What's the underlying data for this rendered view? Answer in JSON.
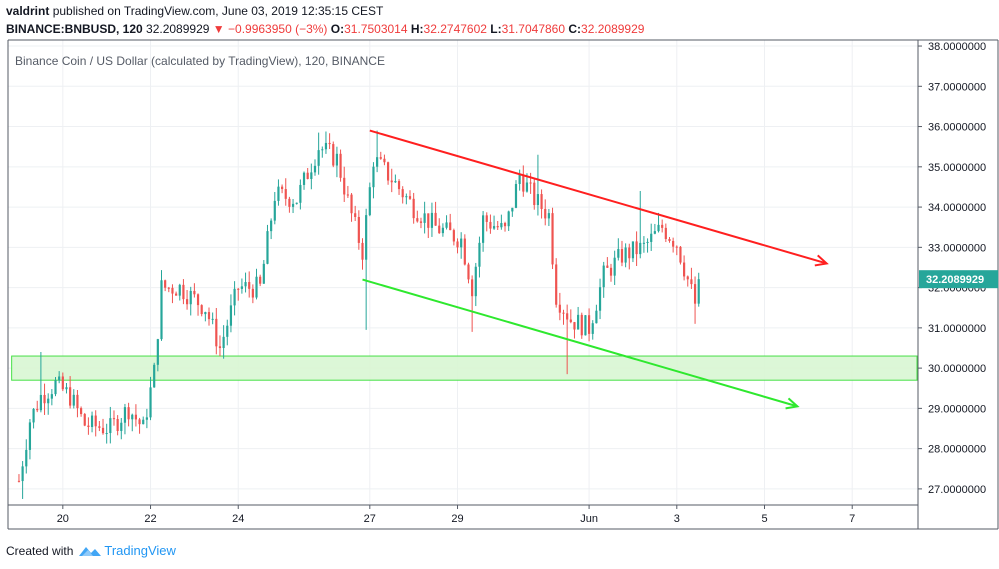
{
  "header": {
    "author": "valdrint",
    "published": "published on TradingView.com, June 03, 2019 12:35:15 CEST",
    "symbol": "BINANCE:BNBUSD, 120",
    "last": "32.2089929",
    "change": "−0.9963950 (−3%)",
    "o_label": "O:",
    "o_value": "31.7503014",
    "h_label": "H:",
    "h_value": "32.2747602",
    "l_label": "L:",
    "l_value": "31.7047860",
    "c_label": "C:",
    "c_value": "32.2089929"
  },
  "footer": {
    "created_with": "Created with",
    "brand": "TradingView"
  },
  "colors": {
    "up": "#26a69a",
    "down": "#ef5350",
    "resistance": "#ff1f1f",
    "support": "#2ee82e",
    "zone_fill": "#d9f7d3",
    "zone_border": "#33dd33",
    "grid": "#eef0f3",
    "axis": "#9598a1",
    "price_label": "#26a69a"
  },
  "chart_data": {
    "type": "candlestick",
    "title": "Binance Coin / US Dollar (calculated by TradingView), 120, BINANCE",
    "interval_hours": 2,
    "x_ticks": [
      "20",
      "22",
      "24",
      "27",
      "29",
      "Jun",
      "3",
      "5",
      "7"
    ],
    "x_tick_dates": [
      "2019-05-20",
      "2019-05-22",
      "2019-05-24",
      "2019-05-27",
      "2019-05-29",
      "2019-06-01",
      "2019-06-03",
      "2019-06-05",
      "2019-06-07"
    ],
    "x_range": [
      "2019-05-18 18:00",
      "2019-06-08 12:00"
    ],
    "y_ticks": [
      "27.0000000",
      "28.0000000",
      "29.0000000",
      "30.0000000",
      "31.0000000",
      "32.0000000",
      "33.0000000",
      "34.0000000",
      "35.0000000",
      "36.0000000",
      "37.0000000",
      "38.0000000"
    ],
    "ylim": [
      26.6,
      38.15
    ],
    "last_price_label": "32.2089929",
    "last_price": 32.2089929,
    "anchors": [
      {
        "t": "2019-05-19 00:00",
        "price": 27.2
      },
      {
        "t": "2019-05-19 06:00",
        "price": 28.7
      },
      {
        "t": "2019-05-19 12:00",
        "price": 29.3
      },
      {
        "t": "2019-05-19 20:00",
        "price": 29.6
      },
      {
        "t": "2019-05-20 04:00",
        "price": 29.3
      },
      {
        "t": "2019-05-20 12:00",
        "price": 28.6
      },
      {
        "t": "2019-05-21 02:00",
        "price": 28.5
      },
      {
        "t": "2019-05-21 12:00",
        "price": 29.0
      },
      {
        "t": "2019-05-21 20:00",
        "price": 28.5
      },
      {
        "t": "2019-05-22 02:00",
        "price": 29.9
      },
      {
        "t": "2019-05-22 06:00",
        "price": 32.0
      },
      {
        "t": "2019-05-22 16:00",
        "price": 32.0
      },
      {
        "t": "2019-05-23 06:00",
        "price": 31.5
      },
      {
        "t": "2019-05-23 14:00",
        "price": 30.5
      },
      {
        "t": "2019-05-24 00:00",
        "price": 32.0
      },
      {
        "t": "2019-05-24 12:00",
        "price": 32.0
      },
      {
        "t": "2019-05-24 20:00",
        "price": 34.3
      },
      {
        "t": "2019-05-25 08:00",
        "price": 34.2
      },
      {
        "t": "2019-05-25 20:00",
        "price": 35.5
      },
      {
        "t": "2019-05-26 06:00",
        "price": 35.2
      },
      {
        "t": "2019-05-26 14:00",
        "price": 33.8
      },
      {
        "t": "2019-05-26 20:00",
        "price": 32.9
      },
      {
        "t": "2019-05-27 02:00",
        "price": 35.2
      },
      {
        "t": "2019-05-27 12:00",
        "price": 34.7
      },
      {
        "t": "2019-05-28 00:00",
        "price": 34.0
      },
      {
        "t": "2019-05-28 12:00",
        "price": 33.5
      },
      {
        "t": "2019-05-29 02:00",
        "price": 33.2
      },
      {
        "t": "2019-05-29 08:00",
        "price": 32.0
      },
      {
        "t": "2019-05-29 14:00",
        "price": 33.7
      },
      {
        "t": "2019-05-30 02:00",
        "price": 33.4
      },
      {
        "t": "2019-05-30 10:00",
        "price": 34.8
      },
      {
        "t": "2019-05-30 18:00",
        "price": 34.2
      },
      {
        "t": "2019-05-31 02:00",
        "price": 33.8
      },
      {
        "t": "2019-05-31 06:00",
        "price": 31.8
      },
      {
        "t": "2019-05-31 14:00",
        "price": 31.2
      },
      {
        "t": "2019-06-01 00:00",
        "price": 31.0
      },
      {
        "t": "2019-06-01 08:00",
        "price": 32.3
      },
      {
        "t": "2019-06-01 18:00",
        "price": 32.8
      },
      {
        "t": "2019-06-02 06:00",
        "price": 33.0
      },
      {
        "t": "2019-06-02 16:00",
        "price": 33.5
      },
      {
        "t": "2019-06-03 00:00",
        "price": 33.1
      },
      {
        "t": "2019-06-03 06:00",
        "price": 32.2
      },
      {
        "t": "2019-06-03 10:00",
        "price": 31.6
      },
      {
        "t": "2019-06-03 12:00",
        "price": 32.21
      }
    ],
    "extreme_wicks": [
      {
        "t": "2019-05-19 02:00",
        "low": 26.75
      },
      {
        "t": "2019-05-19 12:00",
        "high": 30.4
      },
      {
        "t": "2019-05-25 20:00",
        "high": 35.85
      },
      {
        "t": "2019-05-26 22:00",
        "low": 30.95
      },
      {
        "t": "2019-05-27 04:00",
        "high": 35.9
      },
      {
        "t": "2019-05-29 08:00",
        "low": 30.9
      },
      {
        "t": "2019-05-30 20:00",
        "high": 35.3
      },
      {
        "t": "2019-05-31 12:00",
        "low": 29.85
      },
      {
        "t": "2019-06-02 04:00",
        "high": 34.4
      },
      {
        "t": "2019-06-03 10:00",
        "low": 31.1
      }
    ],
    "annotations": [
      {
        "kind": "trend_arrow",
        "name": "resistance",
        "from": {
          "t": "2019-05-27 00:00",
          "price": 35.9
        },
        "to": {
          "t": "2019-06-06 10:00",
          "price": 32.6
        }
      },
      {
        "kind": "trend_arrow",
        "name": "support",
        "from": {
          "t": "2019-05-26 20:00",
          "price": 32.2
        },
        "to": {
          "t": "2019-06-05 18:00",
          "price": 29.05
        }
      },
      {
        "kind": "zone",
        "name": "support-zone",
        "price_from": 29.7,
        "price_to": 30.3,
        "start": "2019-05-18 20:00"
      }
    ]
  }
}
